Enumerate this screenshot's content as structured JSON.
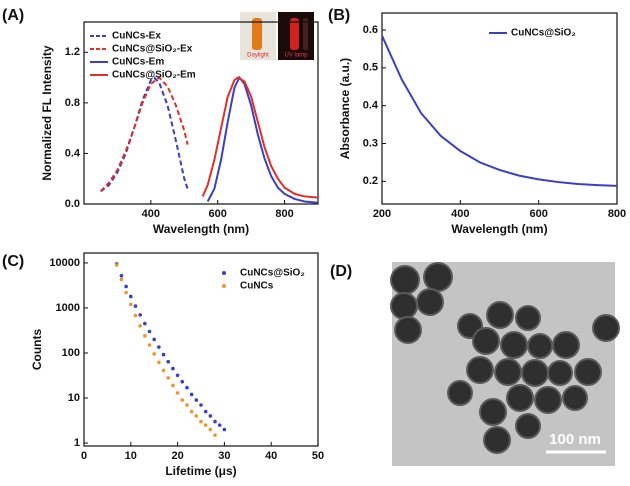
{
  "chart_data": [
    {
      "type": "line",
      "label": "(A)",
      "xlabel": "Wavelength (nm)",
      "ylabel": "Normalized FL Intensity",
      "xlim": [
        200,
        900
      ],
      "xticks": [
        400,
        600,
        800
      ],
      "ylim": [
        0,
        1.44
      ],
      "yticks": [
        {
          "value": 0,
          "label": "0.0"
        },
        0.4,
        0.8,
        1.2
      ],
      "legend": "upper left",
      "annotations": [
        "Daylight",
        "UV lamp"
      ],
      "series": [
        {
          "name": "CuNCs-Ex",
          "color": "#3b3fc0",
          "dash": true,
          "x": [
            250,
            275,
            300,
            325,
            350,
            375,
            400,
            410,
            425,
            450,
            475,
            500,
            510
          ],
          "values": [
            0.1,
            0.15,
            0.25,
            0.4,
            0.6,
            0.82,
            0.98,
            1.0,
            0.96,
            0.78,
            0.5,
            0.2,
            0.12
          ]
        },
        {
          "name": "CuNCs@SiO₂-Ex",
          "color": "#e0302a",
          "dash": true,
          "x": [
            250,
            275,
            300,
            325,
            350,
            375,
            400,
            425,
            450,
            475,
            500,
            510
          ],
          "values": [
            0.1,
            0.17,
            0.27,
            0.42,
            0.6,
            0.8,
            0.95,
            1.0,
            0.93,
            0.78,
            0.58,
            0.47
          ]
        },
        {
          "name": "CuNCs-Em",
          "color": "#3b3fc0",
          "dash": false,
          "x": [
            570,
            590,
            610,
            630,
            650,
            665,
            680,
            700,
            720,
            740,
            760,
            780,
            800,
            830,
            860,
            900
          ],
          "values": [
            0.02,
            0.12,
            0.35,
            0.65,
            0.92,
            1.0,
            0.95,
            0.78,
            0.55,
            0.36,
            0.22,
            0.13,
            0.08,
            0.04,
            0.02,
            0.01
          ]
        },
        {
          "name": "CuNCs@SiO₂-Em",
          "color": "#e0302a",
          "dash": false,
          "x": [
            555,
            570,
            590,
            610,
            630,
            650,
            660,
            680,
            700,
            720,
            740,
            760,
            780,
            800,
            830,
            860,
            900
          ],
          "values": [
            0.06,
            0.15,
            0.35,
            0.6,
            0.85,
            0.98,
            1.0,
            0.97,
            0.85,
            0.65,
            0.45,
            0.3,
            0.2,
            0.13,
            0.08,
            0.06,
            0.05
          ]
        }
      ]
    },
    {
      "type": "line",
      "label": "(B)",
      "xlabel": "Wavelength (nm)",
      "ylabel": "Absorbance (a.u.)",
      "xlim": [
        200,
        800
      ],
      "xticks": [
        200,
        400,
        600,
        800
      ],
      "ylim": [
        0.14,
        0.645
      ],
      "yticks": [
        0.2,
        0.3,
        0.4,
        0.5,
        0.6
      ],
      "legend": "upper right",
      "series": [
        {
          "name": "CuNCs@SiO₂",
          "color": "#3b3fc0",
          "dash": false,
          "x": [
            200,
            250,
            300,
            350,
            400,
            450,
            500,
            550,
            600,
            650,
            700,
            750,
            800
          ],
          "values": [
            0.585,
            0.47,
            0.38,
            0.32,
            0.28,
            0.25,
            0.23,
            0.215,
            0.205,
            0.198,
            0.193,
            0.19,
            0.188
          ]
        }
      ]
    },
    {
      "type": "scatter",
      "label": "(C)",
      "xlabel": "Lifetime (μs)",
      "ylabel": "Counts",
      "xlim": [
        0,
        50
      ],
      "xticks": [
        0,
        10,
        20,
        30,
        40,
        50
      ],
      "ylim": [
        0.86,
        16600
      ],
      "yticks": [
        1,
        10,
        100,
        1000,
        10000
      ],
      "log_y": true,
      "legend": "upper right",
      "series": [
        {
          "name": "CuNCs@SiO₂",
          "color": "#3b3fc0",
          "x": [
            7,
            8,
            9,
            10,
            11,
            12,
            13,
            14,
            15,
            16,
            17,
            18,
            19,
            20,
            21,
            22,
            23,
            24,
            25,
            26,
            27,
            28,
            29,
            30
          ],
          "values": [
            9500,
            5200,
            3000,
            1800,
            1100,
            700,
            450,
            300,
            200,
            135,
            92,
            64,
            45,
            32,
            23,
            17,
            12,
            9,
            7,
            5,
            4,
            3,
            2.5,
            2
          ]
        },
        {
          "name": "CuNCs",
          "color": "#f0932b",
          "x": [
            7,
            8,
            9,
            10,
            11,
            12,
            13,
            14,
            15,
            16,
            17,
            18,
            19,
            20,
            21,
            22,
            23,
            24,
            25,
            26,
            27,
            28
          ],
          "values": [
            9000,
            4300,
            2200,
            1200,
            680,
            400,
            240,
            150,
            95,
            62,
            41,
            28,
            19,
            13,
            9,
            7,
            5,
            4,
            3,
            2.5,
            2,
            1.5
          ]
        }
      ]
    }
  ],
  "image": {
    "label": "(D)",
    "scale_bar": "100 nm"
  }
}
